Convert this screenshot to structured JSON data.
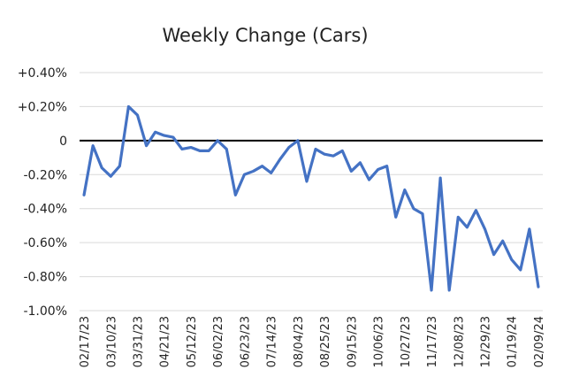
{
  "chart_data": {
    "type": "line",
    "title": "Weekly Change (Cars)",
    "xlabel": "",
    "ylabel": "",
    "ylim": [
      -1.0,
      0.4
    ],
    "grid": "horizontal",
    "zero_line": true,
    "y_ticks": [
      {
        "value": 0.4,
        "label": "+0.40%"
      },
      {
        "value": 0.2,
        "label": "+0.20%"
      },
      {
        "value": 0.0,
        "label": "0"
      },
      {
        "value": -0.2,
        "label": "-0.20%"
      },
      {
        "value": -0.4,
        "label": "-0.40%"
      },
      {
        "value": -0.6,
        "label": "-0.60%"
      },
      {
        "value": -0.8,
        "label": "-0.80%"
      },
      {
        "value": -1.0,
        "label": "-1.00%"
      }
    ],
    "x_tick_labels": [
      "02/17/23",
      "03/10/23",
      "03/31/23",
      "04/21/23",
      "05/12/23",
      "06/02/23",
      "06/23/23",
      "07/14/23",
      "08/04/23",
      "08/25/23",
      "09/15/23",
      "10/06/23",
      "10/27/23",
      "11/17/23",
      "12/08/23",
      "12/29/23",
      "01/19/24",
      "02/09/24"
    ],
    "series": [
      {
        "color": "#4472C4",
        "values": [
          -0.32,
          -0.03,
          -0.16,
          -0.21,
          -0.15,
          0.2,
          0.15,
          -0.03,
          0.05,
          0.03,
          0.02,
          -0.05,
          -0.04,
          -0.06,
          -0.06,
          0.0,
          -0.05,
          -0.32,
          -0.2,
          -0.18,
          -0.15,
          -0.19,
          -0.11,
          -0.04,
          0.0,
          -0.24,
          -0.05,
          -0.08,
          -0.09,
          -0.06,
          -0.18,
          -0.13,
          -0.23,
          -0.17,
          -0.15,
          -0.45,
          -0.29,
          -0.4,
          -0.43,
          -0.88,
          -0.22,
          -0.88,
          -0.45,
          -0.51,
          -0.41,
          -0.52,
          -0.67,
          -0.59,
          -0.7,
          -0.76,
          -0.52,
          -0.86
        ]
      }
    ]
  }
}
